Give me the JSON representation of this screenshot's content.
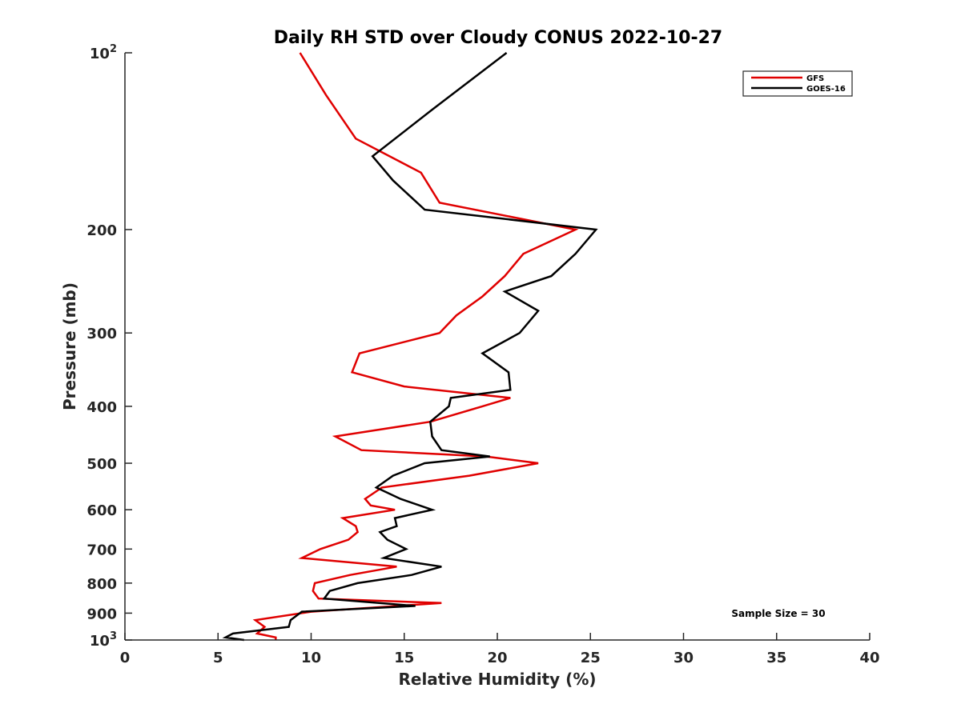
{
  "chart_data": {
    "type": "line",
    "title": "Daily RH STD over Cloudy CONUS 2022-10-27",
    "xlabel": "Relative Humidity (%)",
    "ylabel": "Pressure (mb)",
    "xlim": [
      0,
      40
    ],
    "ylim": [
      100,
      1000
    ],
    "y_scale": "log",
    "y_reversed": true,
    "grid": false,
    "legend_position": "top-right",
    "x_ticks": [
      0,
      5,
      10,
      15,
      20,
      25,
      30,
      35,
      40
    ],
    "x_tick_labels": [
      "0",
      "5",
      "10",
      "15",
      "20",
      "25",
      "30",
      "35",
      "40"
    ],
    "y_ticks": [
      100,
      200,
      300,
      400,
      500,
      600,
      700,
      800,
      900,
      1000
    ],
    "y_tick_labels": [
      {
        "base": "10",
        "exp": "2"
      },
      {
        "base": "200",
        "exp": ""
      },
      {
        "base": "300",
        "exp": ""
      },
      {
        "base": "400",
        "exp": ""
      },
      {
        "base": "500",
        "exp": ""
      },
      {
        "base": "600",
        "exp": ""
      },
      {
        "base": "700",
        "exp": ""
      },
      {
        "base": "800",
        "exp": ""
      },
      {
        "base": "900",
        "exp": ""
      },
      {
        "base": "10",
        "exp": "3"
      }
    ],
    "annotation": "Sample Size = 30",
    "series": [
      {
        "name": "GFS",
        "color": "#e00000",
        "points": [
          [
            9.4,
            100
          ],
          [
            10.8,
            118
          ],
          [
            12.4,
            140
          ],
          [
            15.9,
            160
          ],
          [
            16.9,
            180
          ],
          [
            24.2,
            200
          ],
          [
            21.4,
            220
          ],
          [
            20.4,
            240
          ],
          [
            19.2,
            260
          ],
          [
            17.8,
            280
          ],
          [
            16.9,
            300
          ],
          [
            12.6,
            325
          ],
          [
            12.2,
            350
          ],
          [
            15.0,
            370
          ],
          [
            20.7,
            387
          ],
          [
            19.2,
            400
          ],
          [
            16.4,
            425
          ],
          [
            11.3,
            450
          ],
          [
            12.7,
            475
          ],
          [
            19.4,
            487
          ],
          [
            22.2,
            500
          ],
          [
            18.5,
            525
          ],
          [
            13.8,
            550
          ],
          [
            12.9,
            575
          ],
          [
            13.2,
            590
          ],
          [
            14.5,
            600
          ],
          [
            11.7,
            620
          ],
          [
            12.4,
            640
          ],
          [
            12.5,
            655
          ],
          [
            12.0,
            675
          ],
          [
            10.5,
            700
          ],
          [
            9.5,
            725
          ],
          [
            14.6,
            750
          ],
          [
            12.1,
            775
          ],
          [
            10.2,
            800
          ],
          [
            10.1,
            825
          ],
          [
            10.4,
            850
          ],
          [
            17.0,
            865
          ],
          [
            10.0,
            895
          ],
          [
            7.0,
            925
          ],
          [
            7.5,
            950
          ],
          [
            7.1,
            975
          ],
          [
            8.1,
            990
          ],
          [
            8.1,
            1000
          ]
        ]
      },
      {
        "name": "GOES-16",
        "color": "#000000",
        "points": [
          [
            20.5,
            100
          ],
          [
            16.5,
            125
          ],
          [
            13.3,
            150
          ],
          [
            14.4,
            165
          ],
          [
            16.1,
            185
          ],
          [
            20.5,
            192
          ],
          [
            25.3,
            200
          ],
          [
            24.2,
            220
          ],
          [
            22.9,
            240
          ],
          [
            20.4,
            255
          ],
          [
            22.2,
            275
          ],
          [
            21.2,
            300
          ],
          [
            19.2,
            325
          ],
          [
            20.6,
            350
          ],
          [
            20.7,
            375
          ],
          [
            17.5,
            387
          ],
          [
            17.4,
            400
          ],
          [
            16.4,
            425
          ],
          [
            16.5,
            450
          ],
          [
            17.0,
            475
          ],
          [
            19.6,
            487
          ],
          [
            16.1,
            500
          ],
          [
            14.4,
            525
          ],
          [
            13.5,
            550
          ],
          [
            14.8,
            575
          ],
          [
            16.5,
            600
          ],
          [
            14.5,
            620
          ],
          [
            14.6,
            640
          ],
          [
            13.7,
            655
          ],
          [
            14.1,
            675
          ],
          [
            15.1,
            700
          ],
          [
            13.9,
            725
          ],
          [
            17.0,
            750
          ],
          [
            15.4,
            775
          ],
          [
            12.5,
            800
          ],
          [
            11.0,
            825
          ],
          [
            10.7,
            850
          ],
          [
            15.6,
            875
          ],
          [
            9.5,
            895
          ],
          [
            8.9,
            925
          ],
          [
            8.8,
            950
          ],
          [
            5.8,
            975
          ],
          [
            5.4,
            990
          ],
          [
            6.4,
            1000
          ]
        ]
      }
    ]
  }
}
